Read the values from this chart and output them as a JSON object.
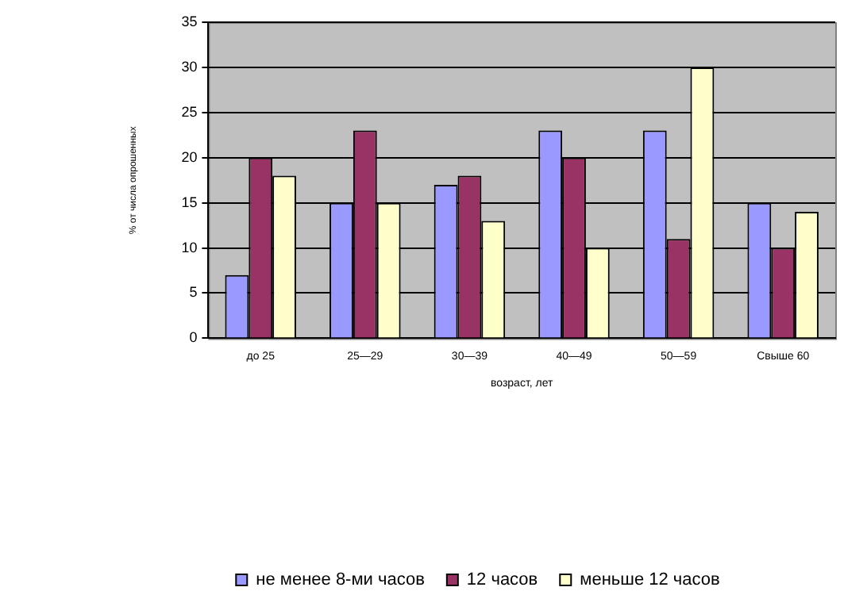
{
  "chart_data": {
    "type": "bar",
    "xlabel": "возраст, лет",
    "ylabel": "% от числа опрошенных",
    "categories": [
      "до 25",
      "25—29",
      "30—39",
      "40—49",
      "50—59",
      "Свыше 60"
    ],
    "series": [
      {
        "name": "не менее 8-ми часов",
        "color": "#9999ff",
        "values": [
          7,
          15,
          17,
          23,
          23,
          15
        ]
      },
      {
        "name": "12 часов",
        "color": "#993366",
        "values": [
          20,
          23,
          18,
          20,
          11,
          10
        ]
      },
      {
        "name": "меньше 12 часов",
        "color": "#ffffcc",
        "values": [
          18,
          15,
          13,
          10,
          30,
          14
        ]
      }
    ],
    "ylim": [
      0,
      35
    ],
    "yticks": [
      0,
      5,
      10,
      15,
      20,
      25,
      30,
      35
    ],
    "grid": "y",
    "legend": "bottom"
  }
}
